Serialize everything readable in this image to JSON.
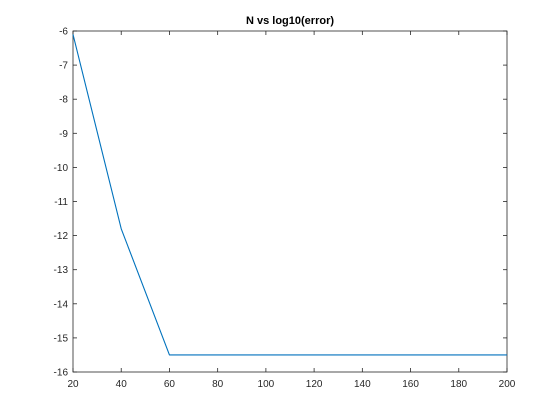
{
  "chart_data": {
    "type": "line",
    "title": "N vs log10(error)",
    "xlabel": "",
    "ylabel": "",
    "xlim": [
      20,
      200
    ],
    "ylim": [
      -16,
      -6
    ],
    "xticks": [
      20,
      40,
      60,
      80,
      100,
      120,
      140,
      160,
      180,
      200
    ],
    "yticks": [
      -6,
      -7,
      -8,
      -9,
      -10,
      -11,
      -12,
      -13,
      -14,
      -15,
      -16
    ],
    "grid": false,
    "legend": "none",
    "series": [
      {
        "color": "#0072BD",
        "x": [
          20,
          40,
          60,
          80,
          100,
          120,
          140,
          160,
          180,
          200
        ],
        "y": [
          -6.1,
          -11.8,
          -15.5,
          -15.5,
          -15.5,
          -15.5,
          -15.5,
          -15.5,
          -15.5,
          -15.5
        ]
      }
    ]
  }
}
